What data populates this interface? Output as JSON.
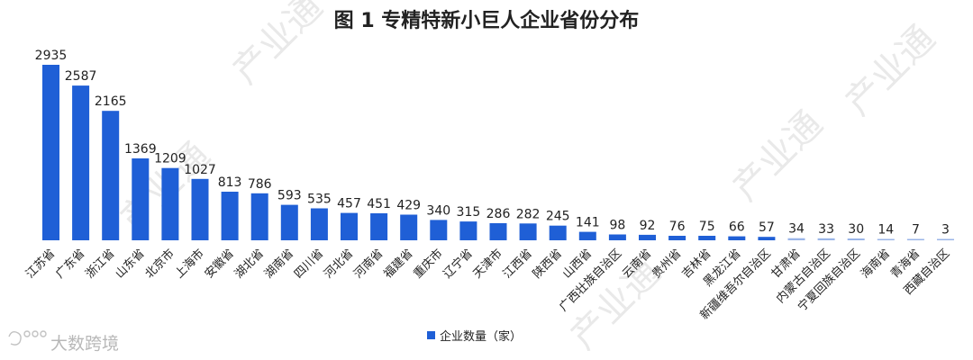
{
  "chart_data": {
    "type": "bar",
    "title": "图 1  专精特新小巨人企业省份分布",
    "categories": [
      "江苏省",
      "广东省",
      "浙江省",
      "山东省",
      "北京市",
      "上海市",
      "安徽省",
      "湖北省",
      "湖南省",
      "四川省",
      "河北省",
      "河南省",
      "福建省",
      "重庆市",
      "辽宁省",
      "天津市",
      "江西省",
      "陕西省",
      "山西省",
      "广西壮族自治区",
      "云南省",
      "贵州省",
      "吉林省",
      "黑龙江省",
      "新疆维吾尔自治区",
      "甘肃省",
      "内蒙古自治区",
      "宁夏回族自治区",
      "海南省",
      "青海省",
      "西藏自治区"
    ],
    "series": [
      {
        "name": "企业数量（家）",
        "values": [
          2935,
          2587,
          2165,
          1369,
          1209,
          1027,
          813,
          786,
          593,
          535,
          457,
          451,
          429,
          340,
          315,
          286,
          282,
          245,
          141,
          98,
          92,
          76,
          75,
          66,
          57,
          34,
          33,
          30,
          14,
          7,
          3
        ]
      }
    ],
    "ylim": [
      0,
      2935
    ],
    "grid": false,
    "legend_position": "bottom",
    "colors": {
      "bar": "#1f5fd6",
      "bar_light": "#9ab5e8"
    }
  },
  "watermark": {
    "text": "产业通",
    "logo_text": "大数跨境"
  }
}
